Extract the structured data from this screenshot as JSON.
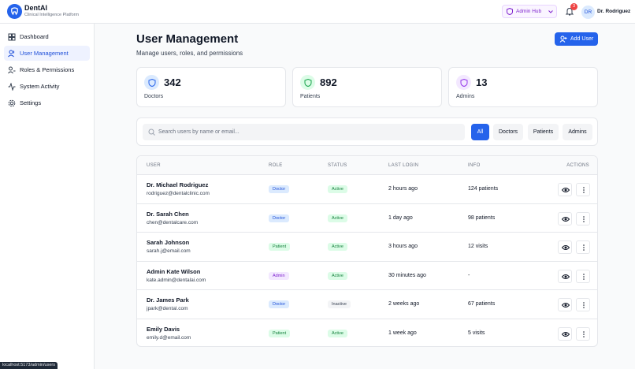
{
  "header": {
    "brand": "DentAI",
    "tagline": "Clinical Intelligence Platform",
    "hub": "Admin Hub",
    "notifications": 3,
    "avatar": "DR",
    "user": "Dr. Rodriguez"
  },
  "sidebar": {
    "items": [
      "Dashboard",
      "User Management",
      "Roles & Permissions",
      "System Activity",
      "Settings"
    ]
  },
  "page": {
    "title": "User Management",
    "subtitle": "Manage users, roles, and permissions",
    "add_button": "Add User"
  },
  "stats": [
    {
      "value": 342,
      "label": "Doctors"
    },
    {
      "value": 892,
      "label": "Patients"
    },
    {
      "value": 13,
      "label": "Admins"
    }
  ],
  "search": {
    "placeholder": "Search users by name or email...",
    "filters": [
      "All",
      "Doctors",
      "Patients",
      "Admins"
    ]
  },
  "table": {
    "columns": [
      "USER",
      "ROLE",
      "STATUS",
      "LAST LOGIN",
      "INFO",
      "ACTIONS"
    ],
    "rows": [
      {
        "name": "Dr. Michael Rodriguez",
        "email": "rodriguez@dentalclinic.com",
        "role": "Doctor",
        "status": "Active",
        "last_login": "2 hours ago",
        "info": "124 patients"
      },
      {
        "name": "Dr. Sarah Chen",
        "email": "chen@dentalcare.com",
        "role": "Doctor",
        "status": "Active",
        "last_login": "1 day ago",
        "info": "98 patients"
      },
      {
        "name": "Sarah Johnson",
        "email": "sarah.j@email.com",
        "role": "Patient",
        "status": "Active",
        "last_login": "3 hours ago",
        "info": "12 visits"
      },
      {
        "name": "Admin Kate Wilson",
        "email": "kate.admin@dentalai.com",
        "role": "Admin",
        "status": "Active",
        "last_login": "30 minutes ago",
        "info": "-"
      },
      {
        "name": "Dr. James Park",
        "email": "jpark@dental.com",
        "role": "Doctor",
        "status": "Inactive",
        "last_login": "2 weeks ago",
        "info": "67 patients"
      },
      {
        "name": "Emily Davis",
        "email": "emily.d@email.com",
        "role": "Patient",
        "status": "Active",
        "last_login": "1 week ago",
        "info": "5 visits"
      }
    ]
  },
  "status_bar": "localhost:5173/admin/users"
}
